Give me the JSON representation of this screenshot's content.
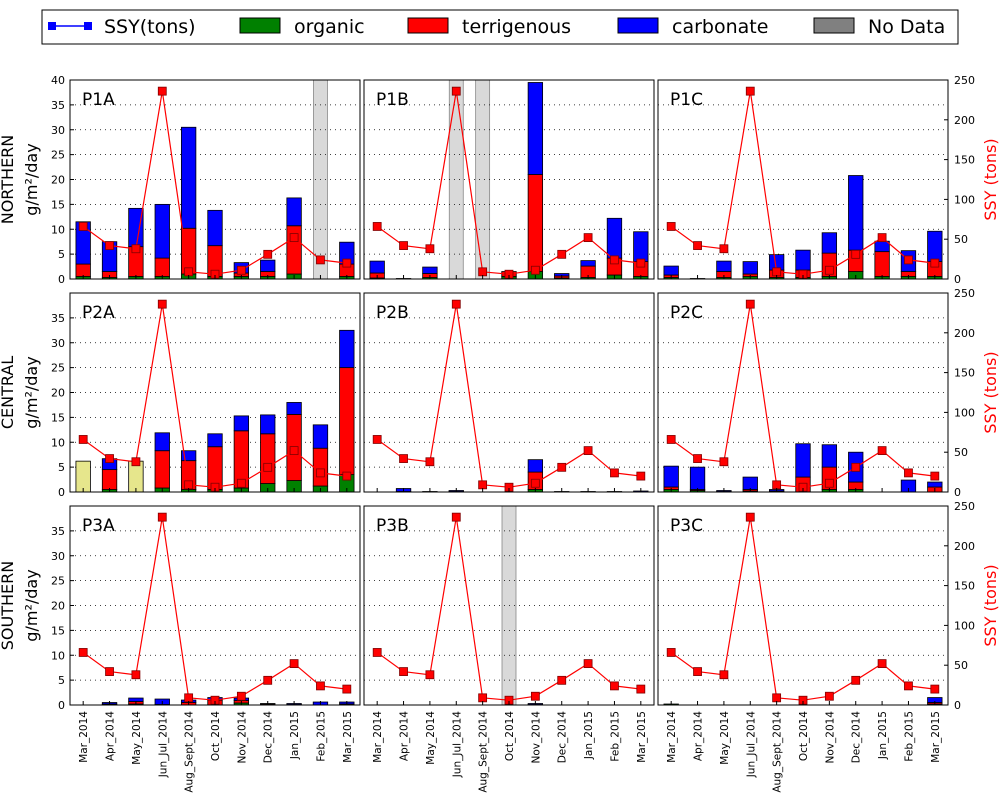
{
  "legend": {
    "items": [
      {
        "label": "SSY(tons)",
        "kind": "line",
        "color": "#ff0000",
        "marker_color": "#0000ff"
      },
      {
        "label": "organic",
        "kind": "patch",
        "color": "#008000"
      },
      {
        "label": "terrigenous",
        "kind": "patch",
        "color": "#ff0000"
      },
      {
        "label": "carbonate",
        "kind": "patch",
        "color": "#0000ff"
      },
      {
        "label": "No Data",
        "kind": "patch",
        "color": "#808080"
      }
    ]
  },
  "row_labels": [
    "NORTHERN",
    "CENTRAL",
    "SOUTHERN"
  ],
  "ylabel_left": "g/m²/day",
  "ylabel_right": "SSY (tons)",
  "colors": {
    "organic": "#008000",
    "terrigenous": "#ff0000",
    "carbonate": "#0000ff",
    "nodata": "#d9d9d9",
    "ssy_line": "#ff0000",
    "ssy_marker": "#ff0000",
    "outlier": "#e6e68c"
  },
  "chart_data": {
    "type": "bar",
    "stacked": true,
    "ylim_left": [
      0,
      40
    ],
    "yticks_left": [
      0,
      5,
      10,
      15,
      20,
      25,
      30,
      35,
      40
    ],
    "ylim_right": [
      0,
      250
    ],
    "yticks_right": [
      0,
      50,
      100,
      150,
      200,
      250
    ],
    "categories": [
      "Mar_2014",
      "Apr_2014",
      "May_2014",
      "Jun_Jul_2014",
      "Aug_Sept_2014",
      "Oct_2014",
      "Nov_2014",
      "Dec_2014",
      "Jan_2015",
      "Feb_2015",
      "Mar_2015"
    ],
    "ssy_tons": [
      66,
      42,
      38,
      236,
      9,
      6,
      11,
      31,
      52,
      24,
      20
    ],
    "panels": [
      {
        "label": "P1A",
        "organic": [
          0.5,
          0.3,
          0.5,
          0.5,
          1.0,
          0.5,
          0.5,
          0.5,
          1.0,
          0.0,
          0.5
        ],
        "terrigenous": [
          2.5,
          1.2,
          6.0,
          3.7,
          9.2,
          6.2,
          0.7,
          1.0,
          9.7,
          0.0,
          2.5
        ],
        "carbonate": [
          8.5,
          6.0,
          7.7,
          10.8,
          20.3,
          7.1,
          2.1,
          2.3,
          5.6,
          0.0,
          4.4
        ],
        "nodata": [
          9
        ]
      },
      {
        "label": "P1B",
        "organic": [
          0.2,
          0.0,
          0.3,
          0.0,
          0.0,
          0.5,
          1.5,
          0.2,
          0.3,
          0.8,
          0.5
        ],
        "terrigenous": [
          1.0,
          0.1,
          0.8,
          0.0,
          0.0,
          1.0,
          19.5,
          0.4,
          2.3,
          3.4,
          3.0
        ],
        "carbonate": [
          2.4,
          0.0,
          1.3,
          0.0,
          0.0,
          0.0,
          18.5,
          0.5,
          1.1,
          8.0,
          6.0
        ],
        "nodata": [
          3,
          4
        ]
      },
      {
        "label": "P1C",
        "organic": [
          0.3,
          0.0,
          0.3,
          0.5,
          0.3,
          0.3,
          0.5,
          1.5,
          0.5,
          0.5,
          0.5
        ],
        "terrigenous": [
          0.5,
          0.1,
          1.2,
          0.5,
          1.5,
          1.5,
          4.7,
          4.3,
          5.0,
          1.0,
          3.0
        ],
        "carbonate": [
          1.8,
          0.0,
          2.1,
          2.5,
          3.1,
          4.0,
          4.1,
          15.0,
          2.1,
          4.2,
          6.1
        ],
        "nodata": []
      },
      {
        "label": "P2A",
        "organic": [
          0.5,
          0.5,
          0.0,
          0.8,
          0.5,
          0.5,
          0.8,
          1.7,
          2.3,
          1.2,
          3.5
        ],
        "terrigenous": [
          3.2,
          4.0,
          0.0,
          7.5,
          5.8,
          8.6,
          11.5,
          10.0,
          13.3,
          7.6,
          21.5
        ],
        "carbonate": [
          3.0,
          2.2,
          0.0,
          3.6,
          2.0,
          2.6,
          3.0,
          3.8,
          2.4,
          4.7,
          7.5
        ],
        "outlier": [
          6.2,
          0,
          6.2,
          0,
          0,
          0,
          0,
          0,
          0,
          0,
          0
        ],
        "nodata": []
      },
      {
        "label": "P2B",
        "organic": [
          0.0,
          0.0,
          0.0,
          0.0,
          0.0,
          0.0,
          0.5,
          0.0,
          0.0,
          0.0,
          0.0
        ],
        "terrigenous": [
          0.0,
          0.1,
          0.1,
          0.1,
          0.0,
          0.0,
          3.5,
          0.0,
          0.0,
          0.0,
          0.0
        ],
        "carbonate": [
          0.0,
          0.6,
          0.0,
          0.2,
          0.0,
          0.0,
          2.5,
          0.1,
          0.1,
          0.1,
          0.2
        ],
        "nodata": []
      },
      {
        "label": "P2C",
        "organic": [
          0.5,
          0.3,
          0.0,
          0.2,
          0.0,
          0.0,
          0.5,
          0.5,
          0.0,
          0.0,
          0.0
        ],
        "terrigenous": [
          0.5,
          0.2,
          0.1,
          0.3,
          0.2,
          3.0,
          4.5,
          1.5,
          0.0,
          0.0,
          1.0
        ],
        "carbonate": [
          4.2,
          4.5,
          0.2,
          2.5,
          0.3,
          6.7,
          4.5,
          6.0,
          0.0,
          2.4,
          1.0
        ],
        "nodata": []
      },
      {
        "label": "P3A",
        "organic": [
          0.0,
          0.1,
          0.2,
          0.0,
          0.0,
          0.0,
          0.4,
          0.0,
          0.0,
          0.0,
          0.0
        ],
        "terrigenous": [
          0.0,
          0.1,
          0.5,
          0.1,
          0.5,
          1.0,
          0.5,
          0.2,
          0.1,
          0.0,
          0.2
        ],
        "carbonate": [
          0.0,
          0.3,
          0.7,
          1.1,
          0.5,
          0.5,
          0.5,
          0.1,
          0.2,
          0.6,
          0.4
        ],
        "nodata": []
      },
      {
        "label": "P3B",
        "organic": [
          0.0,
          0.0,
          0.0,
          0.0,
          0.0,
          0.0,
          0.0,
          0.0,
          0.0,
          0.0,
          0.0
        ],
        "terrigenous": [
          0.0,
          0.0,
          0.0,
          0.0,
          0.0,
          0.0,
          0.1,
          0.0,
          0.0,
          0.0,
          0.0
        ],
        "carbonate": [
          0.0,
          0.0,
          0.0,
          0.0,
          0.0,
          0.0,
          0.2,
          0.0,
          0.0,
          0.0,
          0.0
        ],
        "nodata": [
          5
        ]
      },
      {
        "label": "P3C",
        "organic": [
          0.2,
          0.0,
          0.0,
          0.0,
          0.0,
          0.0,
          0.0,
          0.0,
          0.0,
          0.0,
          0.2
        ],
        "terrigenous": [
          0.0,
          0.0,
          0.0,
          0.0,
          0.0,
          0.0,
          0.0,
          0.0,
          0.0,
          0.0,
          0.3
        ],
        "carbonate": [
          0.0,
          0.0,
          0.0,
          0.0,
          0.0,
          0.0,
          0.0,
          0.0,
          0.0,
          0.0,
          1.0
        ],
        "nodata": []
      }
    ]
  }
}
